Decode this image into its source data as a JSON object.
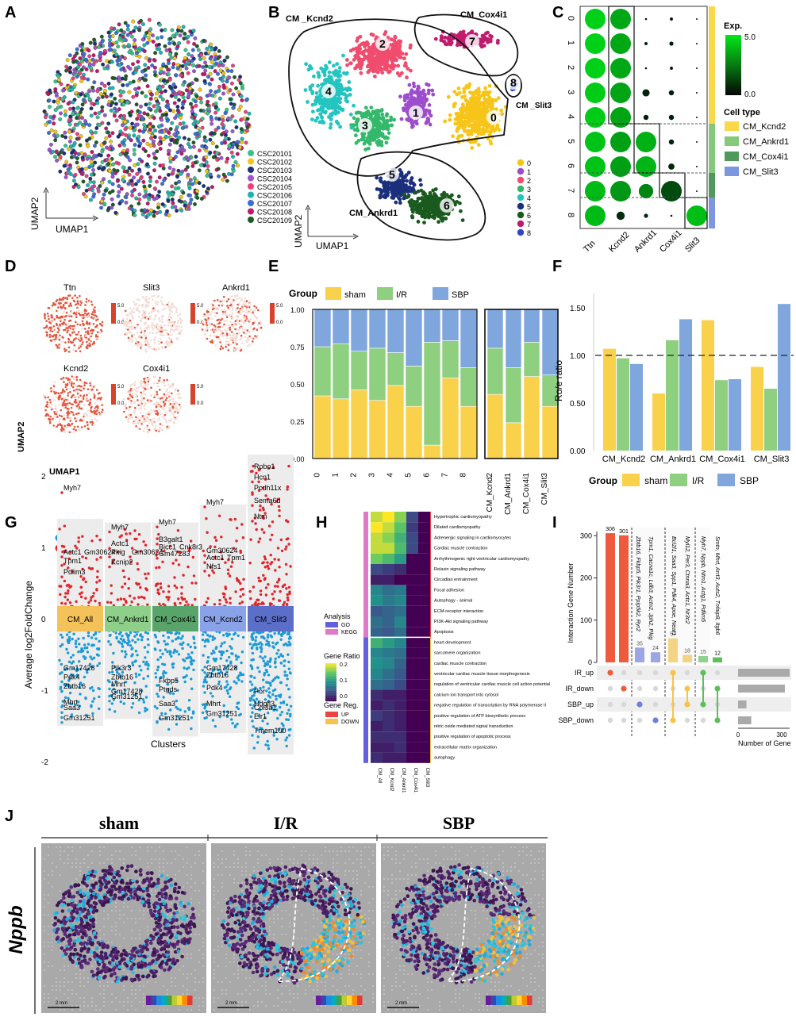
{
  "panels": {
    "A": "A",
    "B": "B",
    "C": "C",
    "D": "D",
    "E": "E",
    "F": "F",
    "G": "G",
    "H": "H",
    "I": "I",
    "J": "J"
  },
  "colors": {
    "sham": "#f9d14b",
    "ir": "#8fcf80",
    "sbp": "#7fa6dd",
    "sigDown": "#1a9bd7",
    "sigUp": "#e0242b"
  },
  "chart_data": [
    {
      "id": "A",
      "type": "scatter",
      "xlabel": "UMAP1",
      "ylabel": "UMAP2",
      "legend": [
        {
          "label": "CSC20101",
          "color": "#39c28a"
        },
        {
          "label": "CSC20102",
          "color": "#f0c51e"
        },
        {
          "label": "CSC20103",
          "color": "#1c2f7a"
        },
        {
          "label": "CSC20104",
          "color": "#9a55cf"
        },
        {
          "label": "CSC20105",
          "color": "#e8437a"
        },
        {
          "label": "CSC20106",
          "color": "#1fb3b0"
        },
        {
          "label": "CSC20107",
          "color": "#3b6fd6"
        },
        {
          "label": "CSC20108",
          "color": "#c0176a"
        },
        {
          "label": "CSC20109",
          "color": "#1e5c26"
        }
      ]
    },
    {
      "id": "B",
      "type": "scatter",
      "xlabel": "UMAP1",
      "ylabel": "UMAP2",
      "regions": [
        "CM _Kcnd2",
        "CM_Cox4i1",
        "CM _Slit3",
        "CM_Ankrd1"
      ],
      "clusters": [
        {
          "id": "0",
          "color": "#f7c51a"
        },
        {
          "id": "1",
          "color": "#9c4dcc"
        },
        {
          "id": "2",
          "color": "#ef4c6e"
        },
        {
          "id": "3",
          "color": "#34b86b"
        },
        {
          "id": "4",
          "color": "#24c4c0"
        },
        {
          "id": "5",
          "color": "#1b2f7c"
        },
        {
          "id": "6",
          "color": "#1a5a1f"
        },
        {
          "id": "7",
          "color": "#c01c6e"
        },
        {
          "id": "8",
          "color": "#2f47c7"
        }
      ]
    },
    {
      "id": "C",
      "type": "dotplot",
      "legend_title": "Exp.",
      "legend_max": "5.0",
      "legend_min": "0.0",
      "celltype_title": "Cell type",
      "genes": [
        "Ttn",
        "Kcnd2",
        "Ankrd1",
        "Cox4i1",
        "Slit3"
      ],
      "rows": [
        "0",
        "1",
        "2",
        "3",
        "4",
        "5",
        "6",
        "7",
        "8"
      ],
      "celltypes": [
        {
          "label": "CM_Kcnd2",
          "color": "#f9d84a"
        },
        {
          "label": "CM_Ankrd1",
          "color": "#86c97a"
        },
        {
          "label": "CM_Cox4i1",
          "color": "#4f9a5a"
        },
        {
          "label": "CM_Slit3",
          "color": "#7d97df"
        }
      ],
      "sizes": [
        [
          1,
          1,
          0.1,
          0.15,
          0.05
        ],
        [
          1,
          1,
          0.15,
          0.2,
          0.05
        ],
        [
          1,
          1,
          0.1,
          0.15,
          0.05
        ],
        [
          1,
          1,
          0.35,
          0.25,
          0.05
        ],
        [
          1,
          1,
          0.25,
          0.25,
          0.05
        ],
        [
          1,
          1,
          1,
          0.25,
          0.05
        ],
        [
          1,
          1,
          1,
          0.3,
          0.05
        ],
        [
          1,
          1,
          0.7,
          1,
          0.05
        ],
        [
          1,
          0.4,
          0.2,
          0.1,
          1
        ]
      ],
      "exps": [
        [
          4.5,
          3.6,
          0.3,
          0.3,
          0.1
        ],
        [
          4.5,
          3.6,
          0.4,
          0.4,
          0.1
        ],
        [
          4.5,
          3.6,
          0.3,
          0.3,
          0.1
        ],
        [
          4.4,
          3.5,
          0.6,
          0.5,
          0.1
        ],
        [
          4.4,
          3.5,
          0.5,
          0.5,
          0.1
        ],
        [
          4.2,
          3.4,
          3.8,
          0.6,
          0.1
        ],
        [
          4.2,
          3.4,
          3.9,
          0.7,
          0.1
        ],
        [
          4.0,
          3.2,
          2.8,
          1.5,
          0.1
        ],
        [
          4.0,
          0.8,
          0.6,
          0.5,
          4.1
        ]
      ]
    },
    {
      "id": "D",
      "type": "scatter",
      "xlabel": "UMAP1",
      "ylabel": "UMAP2",
      "genes": [
        "Ttn",
        "Slit3",
        "Ankrd1",
        "Kcnd2",
        "Cox4i1"
      ],
      "scale_max": "5.0",
      "scale_min": "0.0"
    },
    {
      "id": "E",
      "type": "bar",
      "stacked": true,
      "legend_title": "Group",
      "series_names": [
        "sham",
        "I/R",
        "SBP"
      ],
      "categories": [
        "0",
        "1",
        "2",
        "3",
        "4",
        "5",
        "6",
        "7",
        "8"
      ],
      "sham": [
        0.42,
        0.4,
        0.46,
        0.39,
        0.49,
        0.35,
        0.09,
        0.54,
        0.35
      ],
      "ir": [
        0.33,
        0.37,
        0.26,
        0.35,
        0.22,
        0.27,
        0.69,
        0.25,
        0.26
      ],
      "sbp": [
        0.25,
        0.23,
        0.28,
        0.26,
        0.29,
        0.38,
        0.22,
        0.21,
        0.39
      ],
      "categories2": [
        "CM_Kcnd2",
        "CM_Ankrd1",
        "CM_Cox4i1",
        "CM_Slit3"
      ],
      "sham2": [
        0.43,
        0.24,
        0.55,
        0.35
      ],
      "ir2": [
        0.31,
        0.37,
        0.23,
        0.21
      ],
      "sbp2": [
        0.26,
        0.39,
        0.22,
        0.44
      ],
      "yticks": [
        "0.00",
        "0.25",
        "0.50",
        "0.75",
        "1.00"
      ],
      "ylim": [
        0,
        1
      ]
    },
    {
      "id": "F",
      "type": "bar",
      "ylabel": "Ro/e ratio",
      "legend_title": "Group",
      "series_names": [
        "sham",
        "I/R",
        "SBP"
      ],
      "categories": [
        "CM_Kcnd2",
        "CM_Ankrd1",
        "CM_Cox4i1",
        "CM_Slit3"
      ],
      "sham": [
        1.07,
        0.6,
        1.37,
        0.88
      ],
      "ir": [
        0.97,
        1.16,
        0.74,
        0.65
      ],
      "sbp": [
        0.91,
        1.38,
        0.75,
        1.54
      ],
      "yticks": [
        "0.00",
        "0.50",
        "1.00",
        "1.50"
      ],
      "ylim": [
        0,
        1.65
      ],
      "refline": 1.0
    },
    {
      "id": "G",
      "type": "scatter",
      "xlabel": "Clusters",
      "ylabel": "Average log2FoldChange",
      "legend": [
        "sigDown",
        "sigUp"
      ],
      "yticks": [
        "-2",
        "-1",
        "0",
        "1",
        "2"
      ],
      "clusters": [
        {
          "label": "CM_All",
          "color": "#f5c25a",
          "top": 1.4,
          "bottom": -1.5
        },
        {
          "label": "CM_Ankrd1",
          "color": "#8ed08a",
          "top": 1.35,
          "bottom": -1.4
        },
        {
          "label": "CM_Cox4i1",
          "color": "#58a46a",
          "top": 1.35,
          "bottom": -1.65
        },
        {
          "label": "CM_Kcnd2",
          "color": "#8aa2e8",
          "top": 1.6,
          "bottom": -1.6
        },
        {
          "label": "CM_Slit3",
          "color": "#5c6fc8",
          "top": 2.3,
          "bottom": -1.9
        }
      ],
      "gene_labels": [
        {
          "c": 0,
          "y": 1.8,
          "t": "Myh7"
        },
        {
          "c": 0,
          "y": 0.9,
          "t": "Actc1"
        },
        {
          "c": 0,
          "y": 0.9,
          "t": "Gm30624"
        },
        {
          "c": 0,
          "y": 0.78,
          "t": "Tpm1"
        },
        {
          "c": 0,
          "y": 0.62,
          "t": "Pdlim3"
        },
        {
          "c": 0,
          "y": -0.72,
          "t": "Gm17428"
        },
        {
          "c": 0,
          "y": -0.85,
          "t": "Pdk4"
        },
        {
          "c": 0,
          "y": -0.98,
          "t": "Zbtb16"
        },
        {
          "c": 0,
          "y": -1.2,
          "t": "Mhrt"
        },
        {
          "c": 0,
          "y": -1.28,
          "t": "Saa3"
        },
        {
          "c": 0,
          "y": -1.42,
          "t": "Gm31251"
        },
        {
          "c": 1,
          "y": 1.25,
          "t": "Myh7"
        },
        {
          "c": 1,
          "y": 1.02,
          "t": "Actc1"
        },
        {
          "c": 1,
          "y": 0.9,
          "t": "Pkig"
        },
        {
          "c": 1,
          "y": 0.9,
          "t": "Gm30624"
        },
        {
          "c": 1,
          "y": 0.76,
          "t": "Kcnip2"
        },
        {
          "c": 1,
          "y": -0.72,
          "t": "Pik3r3"
        },
        {
          "c": 1,
          "y": -0.85,
          "t": "Zbtb16"
        },
        {
          "c": 1,
          "y": -0.95,
          "t": "Mhrt"
        },
        {
          "c": 1,
          "y": -1.05,
          "t": "Gm17428"
        },
        {
          "c": 1,
          "y": -1.12,
          "t": "Gm31251"
        },
        {
          "c": 2,
          "y": 1.32,
          "t": "Myh7"
        },
        {
          "c": 2,
          "y": 1.08,
          "t": "B3galt1"
        },
        {
          "c": 2,
          "y": 0.97,
          "t": "Bicc1"
        },
        {
          "c": 2,
          "y": 0.97,
          "t": "Cnk8r3"
        },
        {
          "c": 2,
          "y": 0.88,
          "t": "Gm47283"
        },
        {
          "c": 2,
          "y": -0.9,
          "t": "Fkbp5"
        },
        {
          "c": 2,
          "y": -1.02,
          "t": "Ptgds"
        },
        {
          "c": 2,
          "y": -1.22,
          "t": "Saa3"
        },
        {
          "c": 2,
          "y": -1.42,
          "t": "Gm31251"
        },
        {
          "c": 3,
          "y": 1.6,
          "t": "Myh7"
        },
        {
          "c": 3,
          "y": 0.92,
          "t": "Gm30624"
        },
        {
          "c": 3,
          "y": 0.82,
          "t": "Actc1"
        },
        {
          "c": 3,
          "y": 0.82,
          "t": "Tpm1"
        },
        {
          "c": 3,
          "y": 0.7,
          "t": "Nfs1"
        },
        {
          "c": 3,
          "y": -0.72,
          "t": "Gm17428"
        },
        {
          "c": 3,
          "y": -0.82,
          "t": "Zbtb16"
        },
        {
          "c": 3,
          "y": -1.0,
          "t": "Pdk4"
        },
        {
          "c": 3,
          "y": -1.22,
          "t": "Mhrt"
        },
        {
          "c": 3,
          "y": -1.36,
          "t": "Gm31251"
        },
        {
          "c": 4,
          "y": 2.1,
          "t": "Robo1"
        },
        {
          "c": 4,
          "y": 1.95,
          "t": "Hcn1"
        },
        {
          "c": 4,
          "y": 1.8,
          "t": "Pcdh11x"
        },
        {
          "c": 4,
          "y": 1.62,
          "t": "Sema6d"
        },
        {
          "c": 4,
          "y": 1.4,
          "t": "Ntm"
        },
        {
          "c": 4,
          "y": -1.05,
          "t": "Por"
        },
        {
          "c": 4,
          "y": -1.22,
          "t": "Hdgfl3"
        },
        {
          "c": 4,
          "y": -1.28,
          "t": "Col3a1"
        },
        {
          "c": 4,
          "y": -1.4,
          "t": "Elr1"
        },
        {
          "c": 4,
          "y": -1.6,
          "t": "Tmem100"
        }
      ]
    },
    {
      "id": "H",
      "type": "heatmap",
      "legend_analysis_title": "Analysis",
      "legend_analysis": [
        {
          "label": "GO",
          "color": "#6060e0"
        },
        {
          "label": "KEGG",
          "color": "#e07ac8"
        }
      ],
      "legend_ratio_title": "Gene Ratio",
      "ratio_ticks": [
        "0.2",
        "0.1",
        "0.0"
      ],
      "legend_reg_title": "Gene Reg.",
      "legend_reg": [
        {
          "label": "UP",
          "color": "#f04040"
        },
        {
          "label": "DOWN",
          "color": "#f7c34a"
        }
      ],
      "columns": [
        "CM_All",
        "CM_Kcnd2",
        "CM_Ankrd1",
        "CM_Cox4i1",
        "CM_Slit3"
      ],
      "up_terms": [
        "Hypertrophic cardiomyopathy",
        "Dilated cardiomyopathy",
        "Adrenergic signaling in cardiomyocytes",
        "Cardiac muscle contraction",
        "Arrhythmogenic right ventricular cardiomyopathy",
        "Relaxin signaling pathway",
        "Circadian entrainment",
        "Focal adhesion",
        "Autophagy - animal",
        "ECM-receptor interaction",
        "PI3K-Akt signaling pathway",
        "Apoptosis"
      ],
      "down_terms": [
        "heart development",
        "sarcomere organization",
        "cardiac muscle contraction",
        "ventricular cardiac muscle tissue morphogenesis",
        "regulation of ventricular cardiac muscle cell action potential",
        "calcium ion transport into cytosol",
        "negative regulation of transcription by RNA polymerase II",
        "positive regulation of ATP biosynthetic process",
        "nitric oxide mediated signal transduction",
        "positive regulation of apoptotic process",
        "extracellular matrix organization",
        "autophagy"
      ],
      "up_values": [
        [
          0.2,
          0.22,
          0.18,
          0.05,
          0.0
        ],
        [
          0.22,
          0.2,
          0.16,
          0.04,
          0.0
        ],
        [
          0.2,
          0.18,
          0.14,
          0.05,
          0.0
        ],
        [
          0.2,
          0.2,
          0.15,
          0.05,
          0.0
        ],
        [
          0.17,
          0.15,
          0.12,
          0.0,
          0.0
        ],
        [
          0.05,
          0.04,
          0.03,
          0.0,
          0.0
        ],
        [
          0.02,
          0.02,
          0.0,
          0.0,
          0.0
        ],
        [
          0.1,
          0.08,
          0.09,
          0.0,
          0.0
        ],
        [
          0.11,
          0.09,
          0.1,
          0.0,
          0.0
        ],
        [
          0.06,
          0.07,
          0.08,
          0.0,
          0.0
        ],
        [
          0.08,
          0.07,
          0.1,
          0.0,
          0.0
        ],
        [
          0.07,
          0.06,
          0.08,
          0.0,
          0.0
        ]
      ],
      "down_values": [
        [
          0.14,
          0.12,
          0.1,
          0.0,
          0.0
        ],
        [
          0.1,
          0.09,
          0.08,
          0.0,
          0.0
        ],
        [
          0.11,
          0.1,
          0.07,
          0.0,
          0.0
        ],
        [
          0.1,
          0.08,
          0.06,
          0.0,
          0.0
        ],
        [
          0.08,
          0.07,
          0.05,
          0.0,
          0.0
        ],
        [
          0.03,
          0.02,
          0.02,
          0.0,
          0.0
        ],
        [
          0.02,
          0.03,
          0.02,
          0.0,
          0.0
        ],
        [
          0.04,
          0.03,
          0.02,
          0.0,
          0.0
        ],
        [
          0.02,
          0.03,
          0.02,
          0.0,
          0.0
        ],
        [
          0.03,
          0.03,
          0.03,
          0.0,
          0.0
        ],
        [
          0.02,
          0.02,
          0.03,
          0.0,
          0.0
        ],
        [
          0.03,
          0.02,
          0.02,
          0.0,
          0.0
        ]
      ]
    },
    {
      "id": "I",
      "type": "bar",
      "ylabel": "Interaction Gene Number",
      "xlabel": "Number of Gene",
      "values": [
        306,
        301,
        35,
        24,
        57,
        18,
        15,
        12
      ],
      "value_labels": [
        "306",
        "301",
        "35",
        "24",
        "57",
        "18",
        "15",
        "12"
      ],
      "bar_colors": [
        "#f05a3c",
        "#f05a3c",
        "#6f7fdc",
        "#6f7fdc",
        "#f7c34a",
        "#f7c34a",
        "#5cc05a",
        "#5cc05a"
      ],
      "gene_lists": [
        "Zbtb16, Fkbp5, Pik3r1, Ppip5k2, Ryr2",
        "Tpm1, Cacna1c, Ldb3, Actn2, Jph2, Pkig",
        "Bcl2l1, Saa3, Spp1, Pdk4, Apoe, Neat1",
        "Myl12, Per3, Ctnna3, Actc1, Nr3c2",
        "Myh7, Nppb, Ntm1, Actg1, Pdlim5",
        "Smtn, Mhrt, Arrt3, Auts2, Tnfaip8, Itgb6"
      ],
      "sets": [
        "IR_up",
        "IR_down",
        "SBP_up",
        "SBP_down"
      ],
      "set_sizes": [
        430,
        390,
        70,
        110
      ],
      "yticks": [
        "0",
        "100",
        "200",
        "300"
      ],
      "xticks": [
        "0",
        "300"
      ]
    },
    {
      "id": "J",
      "type": "heatmap",
      "groups": [
        "sham",
        "I/R",
        "SBP"
      ],
      "gene": "Nppb",
      "scale": "2 mm"
    }
  ]
}
